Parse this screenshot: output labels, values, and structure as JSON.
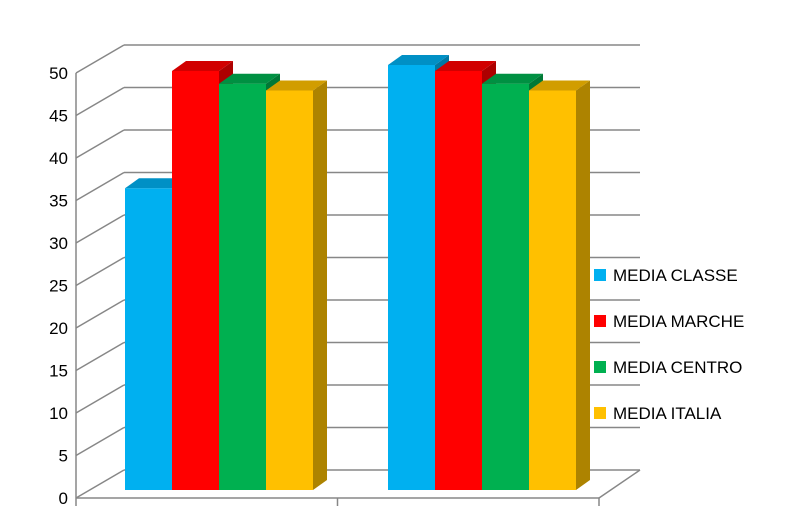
{
  "chart_data": {
    "type": "bar",
    "three_d": true,
    "categories": [
      "",
      ""
    ],
    "ylim": [
      0,
      50
    ],
    "yticks": [
      "0",
      "5",
      "10",
      "15",
      "20",
      "25",
      "30",
      "35",
      "40",
      "45",
      "50"
    ],
    "grid": true,
    "legend_position": "right",
    "series": [
      {
        "name": "MEDIA CLASSE",
        "values": [
          35.5,
          50
        ],
        "color": "#00B0F0"
      },
      {
        "name": "MEDIA MARCHE",
        "values": [
          49.3,
          49.3
        ],
        "color": "#FF0000"
      },
      {
        "name": "MEDIA CENTRO",
        "values": [
          47.8,
          47.8
        ],
        "color": "#00B050"
      },
      {
        "name": "MEDIA ITALIA",
        "values": [
          47,
          47
        ],
        "color": "#FFC000"
      }
    ]
  }
}
